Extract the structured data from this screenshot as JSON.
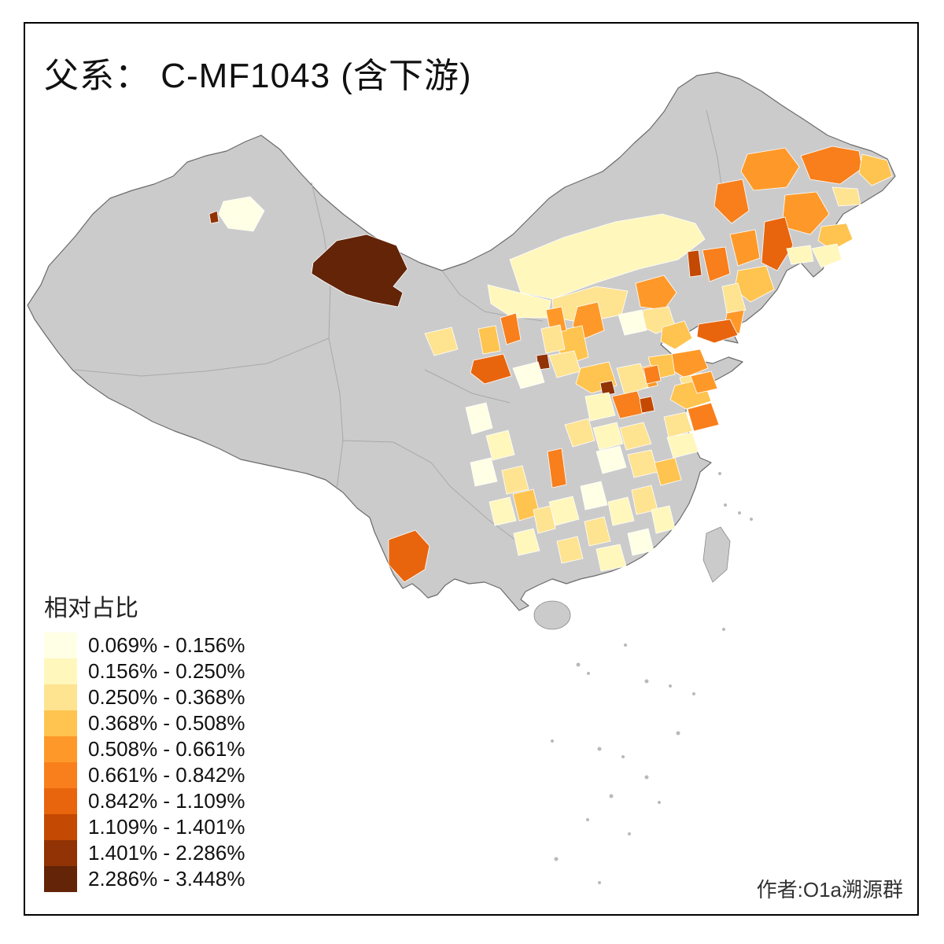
{
  "title": "父系： C-MF1043 (含下游)",
  "attribution": "作者:O1a溯源群",
  "legend": {
    "title": "相对占比",
    "classes": [
      {
        "label": "0.069% - 0.156%",
        "color": "#FFFFE5"
      },
      {
        "label": "0.156% - 0.250%",
        "color": "#FFF7BC"
      },
      {
        "label": "0.250% - 0.368%",
        "color": "#FEE391"
      },
      {
        "label": "0.368% - 0.508%",
        "color": "#FEC44F"
      },
      {
        "label": "0.508% - 0.661%",
        "color": "#FE9929"
      },
      {
        "label": "0.661% - 0.842%",
        "color": "#F87F1B"
      },
      {
        "label": "0.842% - 1.109%",
        "color": "#E8650D"
      },
      {
        "label": "1.109% - 1.401%",
        "color": "#C44903"
      },
      {
        "label": "1.401% - 2.286%",
        "color": "#913304"
      },
      {
        "label": "2.286% - 3.448%",
        "color": "#632408"
      }
    ]
  },
  "map": {
    "no_data_color": "#CBCBCB",
    "country_border_color": "#6B6B6B",
    "province_border_color": "#A9A9A9",
    "region_border_color": "#FFFFFF",
    "regions": [
      {
        "c": 2,
        "p": "648,330 716,302 782,282 842,272 884,284 896,304 862,330 812,342 756,360 702,380 662,372"
      },
      {
        "c": 3,
        "p": "702,380 758,364 798,370 790,400 742,410 704,404"
      },
      {
        "c": 2,
        "p": "620,362 660,372 700,382 696,404 652,404 624,386"
      },
      {
        "c": 6,
        "p": "1018,198 1058,186 1092,192 1096,214 1068,234 1030,228"
      },
      {
        "c": 5,
        "p": "950,196 998,188 1016,212 1000,238 958,242 942,218"
      },
      {
        "c": 4,
        "p": "1096,196 1128,204 1134,224 1108,236 1092,220"
      },
      {
        "c": 6,
        "p": "912,234 944,228 952,268 930,284 908,262"
      },
      {
        "c": 5,
        "p": "998,248 1038,244 1054,272 1030,298 994,288"
      },
      {
        "c": 4,
        "p": "1044,288 1076,284 1084,304 1058,318 1040,306"
      },
      {
        "c": 3,
        "p": "1058,238 1090,240 1094,260 1066,262"
      },
      {
        "c": 7,
        "p": "972,282 998,276 1008,312 988,344 968,334"
      },
      {
        "c": 2,
        "p": "1032,316 1064,310 1070,330 1044,340"
      },
      {
        "c": 5,
        "p": "928,298 960,292 966,328 938,338"
      },
      {
        "c": 6,
        "p": "893,318 922,314 928,348 902,358"
      },
      {
        "c": 8,
        "p": "874,320 888,318 892,350 877,352"
      },
      {
        "c": 4,
        "p": "938,344 974,338 984,368 954,384 934,368"
      },
      {
        "c": 3,
        "p": "918,364 938,360 948,394 924,398"
      },
      {
        "c": 5,
        "p": "924,398 946,394 940,424 920,420"
      },
      {
        "c": 2,
        "p": "1000,316 1030,312 1034,332 1006,336"
      },
      {
        "c": 5,
        "p": "808,360 844,350 860,372 844,394 814,390"
      },
      {
        "c": 3,
        "p": "818,394 850,390 858,414 834,424 814,414"
      },
      {
        "c": 4,
        "p": "842,416 870,408 880,430 858,444 840,434"
      },
      {
        "c": 1,
        "p": "786,400 816,394 822,420 794,426"
      },
      {
        "c": 7,
        "p": "888,412 928,406 938,426 908,436 886,428"
      },
      {
        "c": 5,
        "p": "854,450 890,444 900,468 870,480 850,468"
      },
      {
        "c": 4,
        "p": "824,454 854,450 858,476 832,482"
      },
      {
        "c": 5,
        "p": "804,470 828,464 836,490 810,496"
      },
      {
        "c": 3,
        "p": "864,480 892,474 898,494 870,500"
      },
      {
        "c": 5,
        "p": "734,390 760,384 768,420 744,430 728,414"
      },
      {
        "c": 4,
        "p": "712,420 740,414 748,454 724,462 708,444"
      },
      {
        "c": 5,
        "p": "694,394 714,390 720,420 700,424"
      },
      {
        "c": 6,
        "p": "636,404 656,398 662,432 644,438"
      },
      {
        "c": 4,
        "p": "608,418 630,414 636,446 614,450"
      },
      {
        "c": 3,
        "p": "540,424 574,416 582,444 552,452"
      },
      {
        "c": 7,
        "p": "602,458 640,450 650,478 616,488 598,474"
      },
      {
        "c": 9,
        "p": "682,452 696,450 699,468 684,470"
      },
      {
        "c": 1,
        "p": "652,468 684,460 692,486 662,494"
      },
      {
        "c": 3,
        "p": "698,452 730,446 738,472 708,480"
      },
      {
        "c": 3,
        "p": "688,418 712,413 718,444 694,449"
      },
      {
        "c": 10,
        "p": "398,334 428,306 466,298 504,312 518,342 500,364 512,372 506,390 474,384 440,374 412,358 396,348"
      },
      {
        "c": 9,
        "p": "266,272 276,268 278,282 268,284"
      },
      {
        "c": 1,
        "p": "284,256 318,250 336,268 322,294 290,290 278,272"
      },
      {
        "c": 4,
        "p": "738,468 774,460 784,490 752,500 732,488"
      },
      {
        "c": 9,
        "p": "763,487 778,484 782,500 766,503"
      },
      {
        "c": 3,
        "p": "784,468 814,462 824,492 794,502"
      },
      {
        "c": 6,
        "p": "778,504 810,497 820,525 788,532"
      },
      {
        "c": 8,
        "p": "813,507 828,504 832,522 816,525"
      },
      {
        "c": 2,
        "p": "744,504 774,499 782,528 750,535"
      },
      {
        "c": 6,
        "p": "818,468 836,464 840,484 822,488"
      },
      {
        "c": 4,
        "p": "858,490 894,482 904,510 872,520 852,508"
      },
      {
        "c": 6,
        "p": "874,520 904,512 914,540 882,548"
      },
      {
        "c": 3,
        "p": "844,530 872,524 880,548 850,556"
      },
      {
        "c": 2,
        "p": "848,556 880,550 888,574 856,582"
      },
      {
        "c": 5,
        "p": "878,478 904,472 912,494 886,500"
      },
      {
        "c": 6,
        "p": "696,574 714,570 720,616 702,620"
      },
      {
        "c": 3,
        "p": "718,540 748,532 756,560 728,568"
      },
      {
        "c": 2,
        "p": "754,544 784,537 792,564 762,572"
      },
      {
        "c": 3,
        "p": "788,544 818,537 828,564 796,572"
      },
      {
        "c": 1,
        "p": "758,574 788,567 796,594 766,602"
      },
      {
        "c": 3,
        "p": "798,578 828,572 836,600 806,607"
      },
      {
        "c": 4,
        "p": "832,588 858,582 866,610 840,617"
      },
      {
        "c": 1,
        "p": "592,518 618,512 626,544 600,552"
      },
      {
        "c": 2,
        "p": "618,554 646,547 654,578 626,585"
      },
      {
        "c": 1,
        "p": "598,588 624,582 632,612 604,618"
      },
      {
        "c": 3,
        "p": "638,598 664,592 672,622 644,628"
      },
      {
        "c": 4,
        "p": "652,628 678,622 686,654 660,662"
      },
      {
        "c": 2,
        "p": "622,638 648,632 656,662 629,668"
      },
      {
        "c": 3,
        "p": "678,648 700,643 706,672 684,678"
      },
      {
        "c": 2,
        "p": "698,638 728,631 736,660 706,668"
      },
      {
        "c": 1,
        "p": "738,618 764,612 772,642 744,648"
      },
      {
        "c": 3,
        "p": "743,663 768,657 776,688 749,694"
      },
      {
        "c": 2,
        "p": "773,638 798,632 806,662 779,668"
      },
      {
        "c": 3,
        "p": "803,623 828,617 836,648 809,654"
      },
      {
        "c": 2,
        "p": "828,648 851,643 858,672 834,678"
      },
      {
        "c": 1,
        "p": "798,678 824,672 831,700 804,706"
      },
      {
        "c": 2,
        "p": "758,698 788,692 796,720 764,726"
      },
      {
        "c": 3,
        "p": "708,688 734,682 741,710 714,716"
      },
      {
        "c": 2,
        "p": "653,678 678,672 686,700 659,706"
      },
      {
        "c": 7,
        "p": "494,686 528,674 546,694 540,724 514,740 494,718"
      }
    ]
  }
}
